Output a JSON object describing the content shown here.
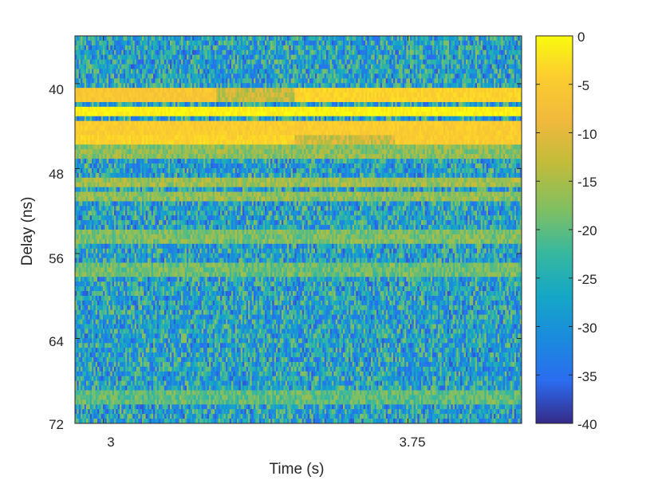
{
  "chart_data": {
    "type": "heatmap",
    "title": "",
    "xlabel": "Time (s)",
    "ylabel": "Delay (ns)",
    "x_ticks": [
      3,
      3.75
    ],
    "x_tick_labels": [
      "3",
      "3.75"
    ],
    "xlim": [
      2.93,
      4.03
    ],
    "y_ticks": [
      40,
      48,
      56,
      64,
      72
    ],
    "y_tick_labels": [
      "40",
      "48",
      "56",
      "64",
      "72"
    ],
    "ylim": [
      35.5,
      72
    ],
    "y_reversed": true,
    "colorbar": {
      "ticks": [
        0,
        -5,
        -10,
        -15,
        -20,
        -25,
        -30,
        -35,
        -40
      ],
      "tick_labels": [
        "0",
        "-5",
        "-10",
        "-15",
        "-20",
        "-25",
        "-30",
        "-35",
        "-40"
      ],
      "range": [
        -40,
        0
      ],
      "colormap": "parula"
    },
    "bands": [
      {
        "delay": 41.1,
        "segments": [
          {
            "t": [
              2.93,
              3.28
            ],
            "level": -6
          },
          {
            "t": [
              3.28,
              3.47
            ],
            "level": -13
          },
          {
            "t": [
              3.47,
              4.03
            ],
            "level": -4
          }
        ]
      },
      {
        "delay": 42.6,
        "segments": [
          {
            "t": [
              2.93,
              4.03
            ],
            "level": -1
          }
        ]
      },
      {
        "delay": 44.1,
        "segments": [
          {
            "t": [
              2.93,
              4.03
            ],
            "level": -5
          }
        ]
      },
      {
        "delay": 45.3,
        "segments": [
          {
            "t": [
              2.93,
              3.47
            ],
            "level": -4
          },
          {
            "t": [
              3.47,
              3.72
            ],
            "level": -12
          },
          {
            "t": [
              3.72,
              4.03
            ],
            "level": -5
          }
        ]
      },
      {
        "delay": 46.5,
        "segments": [
          {
            "t": [
              2.93,
              4.03
            ],
            "level": -17
          }
        ]
      },
      {
        "delay": 49.3,
        "segments": [
          {
            "t": [
              2.93,
              4.03
            ],
            "level": -16
          }
        ]
      },
      {
        "delay": 50.7,
        "segments": [
          {
            "t": [
              2.93,
              4.03
            ],
            "level": -17
          }
        ]
      },
      {
        "delay": 54.4,
        "segments": [
          {
            "t": [
              2.93,
              4.03
            ],
            "level": -18
          }
        ]
      },
      {
        "delay": 57.5,
        "segments": [
          {
            "t": [
              2.93,
              4.03
            ],
            "level": -19
          }
        ]
      },
      {
        "delay": 69.5,
        "segments": [
          {
            "t": [
              2.93,
              4.03
            ],
            "level": -20
          }
        ]
      }
    ],
    "background_level": -27
  }
}
